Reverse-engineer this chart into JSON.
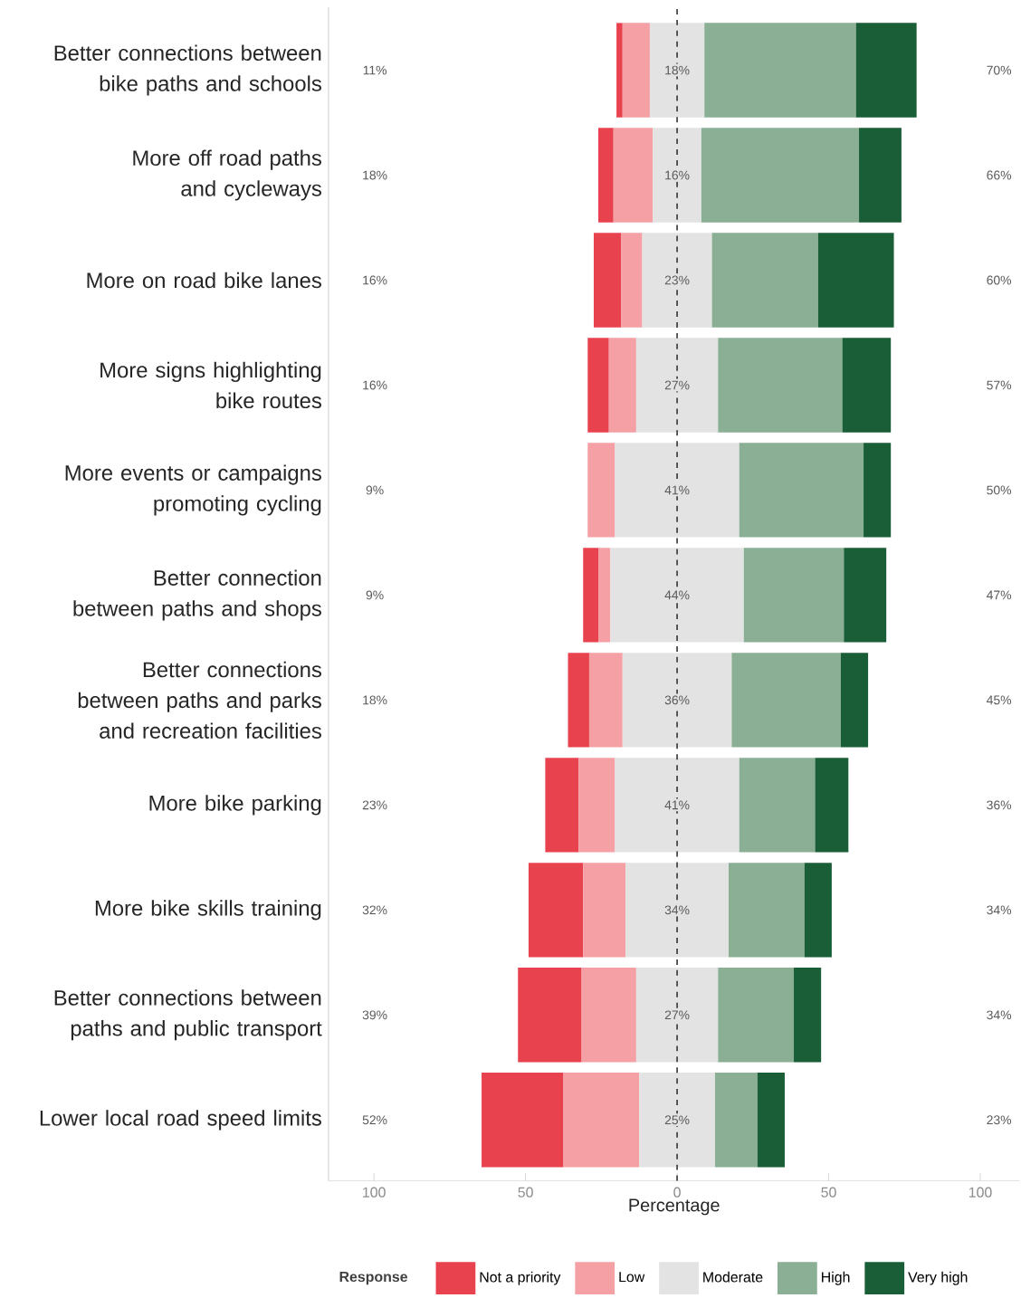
{
  "chart_data": {
    "type": "bar",
    "orientation": "horizontal",
    "xlabel": "Percentage",
    "legend_title": "Response",
    "legend": "bottom",
    "categories": [
      "Better connections between bike paths and schools",
      "More off road paths and cycleways",
      "More on road bike lanes",
      "More signs highlighting bike routes",
      "More events or campaigns promoting cycling",
      "Better connection between paths and shops",
      "Better connections between paths and parks and recreation facilities",
      "More bike parking",
      "More bike skills training",
      "Better connections between paths and public transport",
      "Lower local road speed limits"
    ],
    "xlim": [
      -115,
      113
    ],
    "xticks": [
      {
        "value": -100,
        "label": "100"
      },
      {
        "value": -50,
        "label": "50"
      },
      0,
      50,
      100
    ],
    "series": [
      {
        "name": "Not a priority",
        "color": "#e8424f",
        "values": [
          2,
          5,
          9,
          7,
          null,
          5,
          7,
          11,
          18,
          21,
          27
        ],
        "base": [
          -20,
          -26,
          -27.5,
          -29.5,
          null,
          -31,
          -36,
          -43.5,
          -49,
          -52.5,
          -64.5
        ]
      },
      {
        "name": "Low",
        "color": "#f4a0a4",
        "values": [
          9,
          13,
          7,
          9,
          9,
          4,
          11,
          12,
          14,
          18,
          25
        ],
        "base": [
          -18,
          -21,
          -18.5,
          -22.5,
          -29.5,
          -26,
          -29,
          -32.5,
          -31,
          -31.5,
          -37.5
        ]
      },
      {
        "name": "Moderate",
        "color": "#e3e3e3",
        "values": [
          18,
          16,
          23,
          27,
          41,
          44,
          36,
          41,
          34,
          27,
          25
        ],
        "base": [
          -9,
          -8,
          -11.5,
          -13.5,
          -20.5,
          -22,
          -18,
          -20.5,
          -17,
          -13.5,
          -12.5
        ],
        "value_labels": [
          "18%",
          "16%",
          "23%",
          "27%",
          "41%",
          "44%",
          "36%",
          "41%",
          "34%",
          "27%",
          "25%"
        ]
      },
      {
        "name": "High",
        "color": "#8aaf94",
        "values": [
          50,
          52,
          35,
          41,
          41,
          33,
          36,
          25,
          25,
          25,
          14
        ],
        "base": [
          9,
          8,
          11.5,
          13.5,
          20.5,
          22,
          18,
          20.5,
          17,
          13.5,
          12.5
        ]
      },
      {
        "name": "Very high",
        "color": "#195e36",
        "values": [
          20,
          14,
          25,
          16,
          9,
          14,
          9,
          11,
          9,
          9,
          9
        ],
        "base": [
          59,
          60,
          46.5,
          54.5,
          61.5,
          55,
          54,
          45.5,
          42,
          38.5,
          26.5
        ]
      }
    ],
    "ref_lines": [
      {
        "axis": "x",
        "value": 0,
        "color": "#333333",
        "line_style": "dashed"
      }
    ],
    "annotations": [
      "11%",
      "70%",
      "18%",
      "66%",
      "16%",
      "60%",
      "16%",
      "57%",
      "9%",
      "50%",
      "9%",
      "47%",
      "18%",
      "45%",
      "23%",
      "36%",
      "32%",
      "34%",
      "39%",
      "34%",
      "52%",
      "23%"
    ]
  }
}
